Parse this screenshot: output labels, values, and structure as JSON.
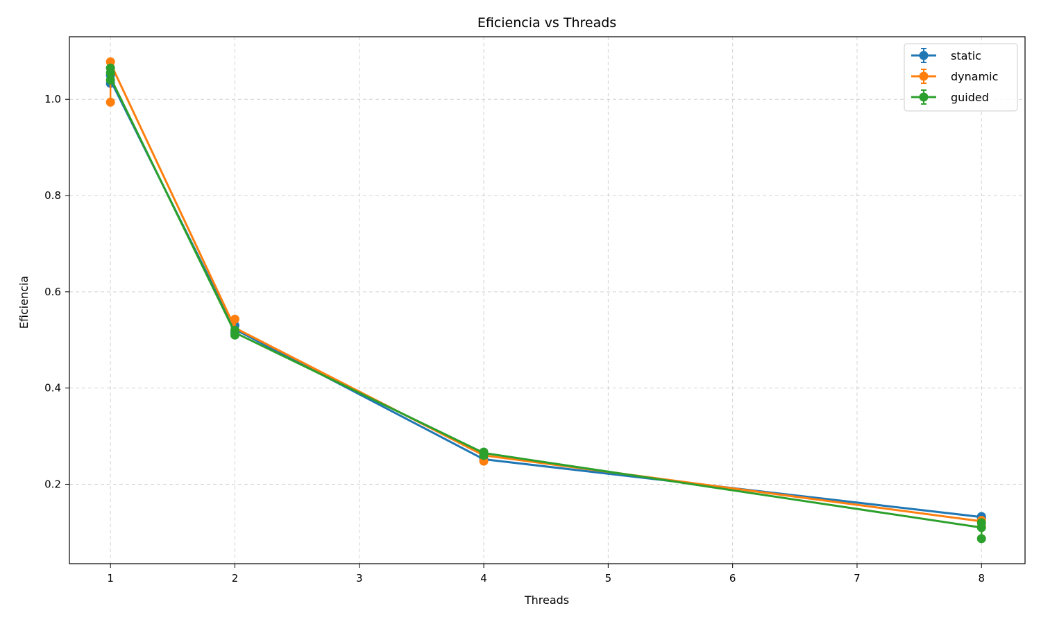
{
  "chart_data": {
    "type": "line",
    "title": "Eficiencia vs Threads",
    "xlabel": "Threads",
    "ylabel": "Eficiencia",
    "xlim": [
      0.67,
      8.35
    ],
    "ylim": [
      0.035,
      1.13
    ],
    "xticks": [
      1,
      2,
      3,
      4,
      5,
      6,
      7,
      8
    ],
    "yticks": [
      0.2,
      0.4,
      0.6,
      0.8,
      1.0
    ],
    "ytick_labels": [
      "0.2",
      "0.4",
      "0.6",
      "0.8",
      "1.0"
    ],
    "grid": true,
    "legend_position": "top-right",
    "x": [
      1,
      2,
      4,
      8
    ],
    "series": [
      {
        "name": "static",
        "color": "#1f77b4",
        "values": [
          1.04,
          0.522,
          0.252,
          0.132
        ],
        "points": [
          [
            1,
            1.033
          ],
          [
            1,
            1.05
          ],
          [
            2,
            0.515
          ],
          [
            2,
            0.53
          ],
          [
            4,
            0.253
          ],
          [
            4,
            0.263
          ],
          [
            8,
            0.13
          ],
          [
            8,
            0.133
          ]
        ]
      },
      {
        "name": "dynamic",
        "color": "#ff7f0e",
        "values": [
          1.075,
          0.525,
          0.26,
          0.123
        ],
        "points": [
          [
            1,
            1.078
          ],
          [
            1,
            0.994
          ],
          [
            2,
            0.543
          ],
          [
            2,
            0.52
          ],
          [
            4,
            0.248
          ],
          [
            4,
            0.263
          ],
          [
            8,
            0.125
          ],
          [
            8,
            0.112
          ]
        ]
      },
      {
        "name": "guided",
        "color": "#2ca02c",
        "values": [
          1.045,
          0.515,
          0.265,
          0.11
        ],
        "points": [
          [
            1,
            1.065
          ],
          [
            1,
            1.055
          ],
          [
            1,
            1.04
          ],
          [
            2,
            0.51
          ],
          [
            2,
            0.52
          ],
          [
            4,
            0.26
          ],
          [
            4,
            0.267
          ],
          [
            8,
            0.12
          ],
          [
            8,
            0.11
          ],
          [
            8,
            0.087
          ]
        ]
      }
    ]
  }
}
